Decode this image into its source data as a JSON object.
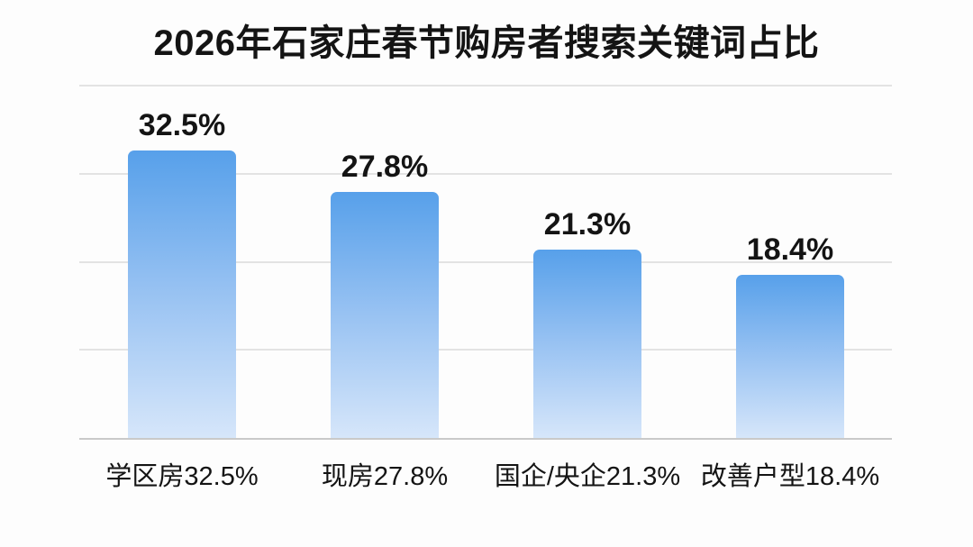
{
  "title": "2026年石家庄春节购房者搜索关键词占比",
  "chart_data": {
    "type": "bar",
    "title": "2026年石家庄春节购房者搜索关键词占比",
    "categories": [
      "学区房32.5%",
      "现房27.8%",
      "国企/央企21.3%",
      "改善户型18.4%"
    ],
    "values": [
      32.5,
      27.8,
      21.3,
      18.4
    ],
    "value_labels": [
      "32.5%",
      "27.8%",
      "21.3%",
      "18.4%"
    ],
    "unit": "%",
    "xlabel": "",
    "ylabel": "",
    "ylim": [
      0,
      40
    ],
    "gridlines": [
      10,
      20,
      30,
      40
    ],
    "grid": true,
    "legend": false,
    "colors": {
      "bar_gradient_top": "#57a0ea",
      "bar_gradient_mid": "#96c1f2",
      "bar_gradient_bottom": "#d6e6fa",
      "gridline": "#e3e3e3",
      "baseline": "#c9c9c9",
      "text": "#141414",
      "background": "#fdfdfd"
    }
  }
}
